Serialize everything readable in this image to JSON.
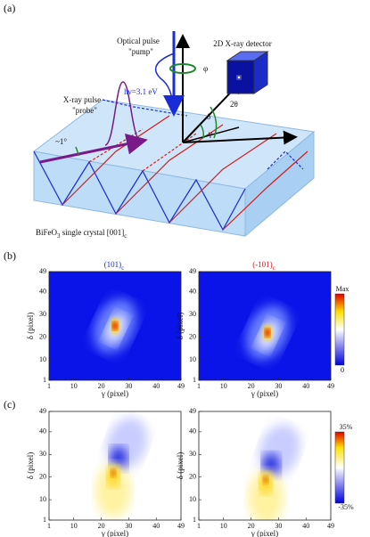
{
  "panel_a": {
    "label": "(a)",
    "optical_pulse": "Optical pulse",
    "pump": "\"pump\"",
    "photon_energy": "hν=3.1 eV",
    "phi": "φ",
    "detector": "2D X-ray detector",
    "xray_pulse": "X-ray pulse",
    "probe": "\"probe\"",
    "two_theta": "2θ",
    "delta": "δ",
    "gamma": "γ",
    "angle": "~1°",
    "crystal": {
      "name": "BiFeO",
      "sub1": "3",
      "rest": " single crystal [001]",
      "sub2": "c"
    }
  },
  "panel_b": {
    "label": "(b)",
    "plots": [
      {
        "title": "(101)",
        "title_sub": "c"
      },
      {
        "title": "(-101)",
        "title_sub": "c"
      }
    ],
    "colorbar": {
      "max": "Max",
      "min": "0"
    }
  },
  "panel_c": {
    "label": "(c)",
    "colorbar": {
      "max": "35%",
      "min": "-35%"
    }
  },
  "axes": {
    "ylabel": "δ (pixel)",
    "xlabel": "γ (pixel)",
    "xticks": [
      1,
      10,
      20,
      30,
      40,
      49
    ],
    "yticks": [
      1,
      10,
      20,
      30,
      40,
      49
    ]
  }
}
